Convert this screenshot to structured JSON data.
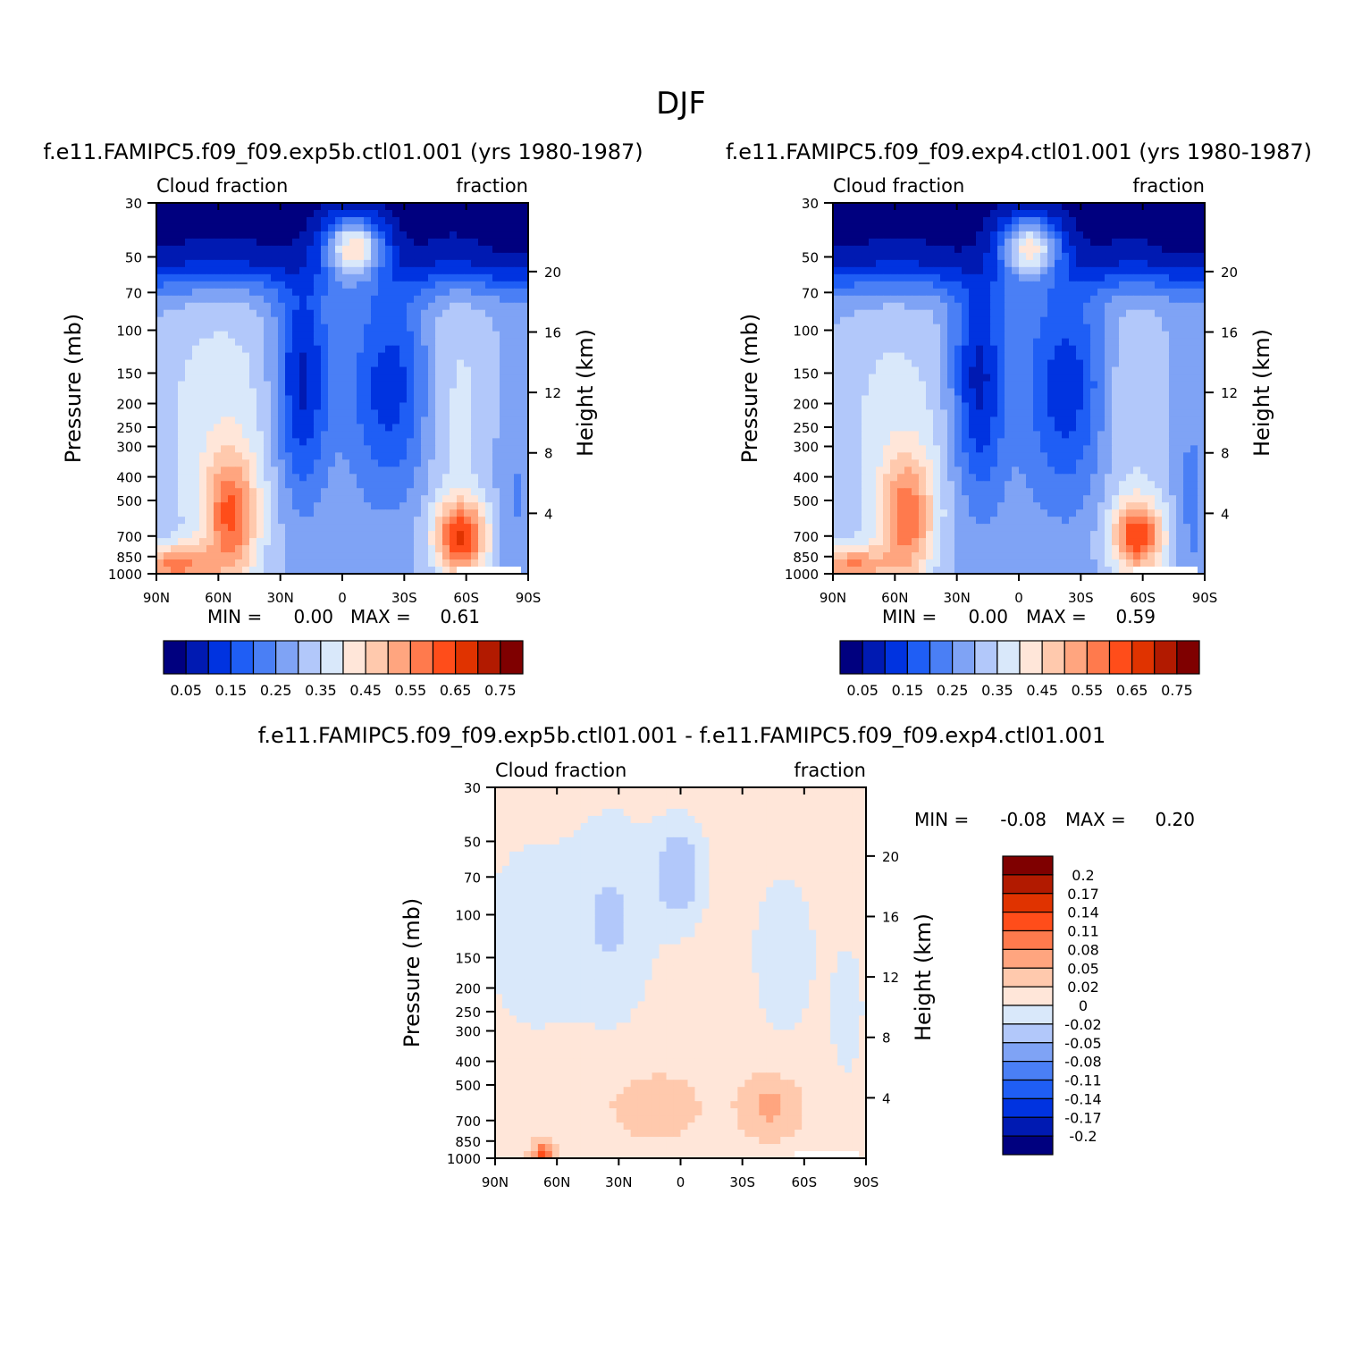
{
  "page_title": "DJF",
  "colors": {
    "abs_levels": [
      "#00007f",
      "#001ab2",
      "#0033e0",
      "#1f5ef5",
      "#4a7ff5",
      "#7fa3f5",
      "#b2c8fa",
      "#d9e8fa",
      "#ffe6d9",
      "#ffc9ad",
      "#ffa57f",
      "#ff7a4d",
      "#ff4d1a",
      "#e03300",
      "#b21a00",
      "#7f0000"
    ],
    "diff_levels": [
      "#00007f",
      "#001ab2",
      "#0033e0",
      "#1f5ef5",
      "#4a7ff5",
      "#7fa3f5",
      "#b2c8fa",
      "#d9e8fa",
      "#ffe6d9",
      "#ffc9ad",
      "#ffa57f",
      "#ff7a4d",
      "#ff4d1a",
      "#e03300",
      "#b21a00",
      "#7f0000"
    ]
  },
  "chart_data": [
    {
      "id": "panel1",
      "type": "heatmap",
      "title": "f.e11.FAMIPC5.f09_f09.exp5b.ctl01.001 (yrs 1980-1987)",
      "left_label": "Cloud fraction",
      "right_label": "fraction",
      "xlabel": "",
      "ylabel": "Pressure (mb)",
      "ylabel_right": "Height (km)",
      "x_ticks": [
        "90N",
        "60N",
        "30N",
        "0",
        "30S",
        "60S",
        "90S"
      ],
      "y_ticks": [
        "30",
        "50",
        "70",
        "100",
        "150",
        "200",
        "250",
        "300",
        "400",
        "500",
        "700",
        "850",
        "1000"
      ],
      "y_tick_values": [
        30,
        50,
        70,
        100,
        150,
        200,
        250,
        300,
        400,
        500,
        700,
        850,
        1000
      ],
      "height_ticks": [
        "20",
        "16",
        "12",
        "8",
        "4"
      ],
      "height_tick_values": [
        20,
        16,
        12,
        8,
        4
      ],
      "ylim": [
        30,
        1000
      ],
      "stats": {
        "min_label": "MIN =",
        "min": "0.00",
        "max_label": "MAX =",
        "max": "0.61"
      },
      "colorbar": {
        "labels": [
          "0.05",
          "0.15",
          "0.25",
          "0.35",
          "0.45",
          "0.55",
          "0.65",
          "0.75"
        ],
        "levels": [
          0.05,
          0.1,
          0.15,
          0.2,
          0.25,
          0.3,
          0.35,
          0.4,
          0.45,
          0.5,
          0.55,
          0.6,
          0.65,
          0.7,
          0.75
        ]
      },
      "field": "abs1"
    },
    {
      "id": "panel2",
      "type": "heatmap",
      "title": "f.e11.FAMIPC5.f09_f09.exp4.ctl01.001 (yrs 1980-1987)",
      "left_label": "Cloud fraction",
      "right_label": "fraction",
      "xlabel": "",
      "ylabel": "Pressure (mb)",
      "ylabel_right": "Height (km)",
      "x_ticks": [
        "90N",
        "60N",
        "30N",
        "0",
        "30S",
        "60S",
        "90S"
      ],
      "y_ticks": [
        "30",
        "50",
        "70",
        "100",
        "150",
        "200",
        "250",
        "300",
        "400",
        "500",
        "700",
        "850",
        "1000"
      ],
      "y_tick_values": [
        30,
        50,
        70,
        100,
        150,
        200,
        250,
        300,
        400,
        500,
        700,
        850,
        1000
      ],
      "height_ticks": [
        "20",
        "16",
        "12",
        "8",
        "4"
      ],
      "height_tick_values": [
        20,
        16,
        12,
        8,
        4
      ],
      "ylim": [
        30,
        1000
      ],
      "stats": {
        "min_label": "MIN =",
        "min": "0.00",
        "max_label": "MAX =",
        "max": "0.59"
      },
      "colorbar": {
        "labels": [
          "0.05",
          "0.15",
          "0.25",
          "0.35",
          "0.45",
          "0.55",
          "0.65",
          "0.75"
        ],
        "levels": [
          0.05,
          0.1,
          0.15,
          0.2,
          0.25,
          0.3,
          0.35,
          0.4,
          0.45,
          0.5,
          0.55,
          0.6,
          0.65,
          0.7,
          0.75
        ]
      },
      "field": "abs2"
    },
    {
      "id": "panel3",
      "type": "heatmap",
      "title": "f.e11.FAMIPC5.f09_f09.exp5b.ctl01.001 - f.e11.FAMIPC5.f09_f09.exp4.ctl01.001",
      "left_label": "Cloud fraction",
      "right_label": "fraction",
      "xlabel": "",
      "ylabel": "Pressure (mb)",
      "ylabel_right": "Height (km)",
      "x_ticks": [
        "90N",
        "60N",
        "30N",
        "0",
        "30S",
        "60S",
        "90S"
      ],
      "y_ticks": [
        "30",
        "50",
        "70",
        "100",
        "150",
        "200",
        "250",
        "300",
        "400",
        "500",
        "700",
        "850",
        "1000"
      ],
      "y_tick_values": [
        30,
        50,
        70,
        100,
        150,
        200,
        250,
        300,
        400,
        500,
        700,
        850,
        1000
      ],
      "height_ticks": [
        "20",
        "16",
        "12",
        "8",
        "4"
      ],
      "height_tick_values": [
        20,
        16,
        12,
        8,
        4
      ],
      "ylim": [
        30,
        1000
      ],
      "stats": {
        "min_label": "MIN =",
        "min": "-0.08",
        "max_label": "MAX =",
        "max": "0.20"
      },
      "colorbar": {
        "labels": [
          "0.2",
          "0.17",
          "0.14",
          "0.11",
          "0.08",
          "0.05",
          "0.02",
          "0",
          "-0.02",
          "-0.05",
          "-0.08",
          "-0.11",
          "-0.14",
          "-0.17",
          "-0.2"
        ],
        "levels": [
          -0.2,
          -0.17,
          -0.14,
          -0.11,
          -0.08,
          -0.05,
          -0.02,
          0,
          0.02,
          0.05,
          0.08,
          0.11,
          0.14,
          0.17,
          0.2
        ]
      },
      "field": "diff"
    }
  ]
}
